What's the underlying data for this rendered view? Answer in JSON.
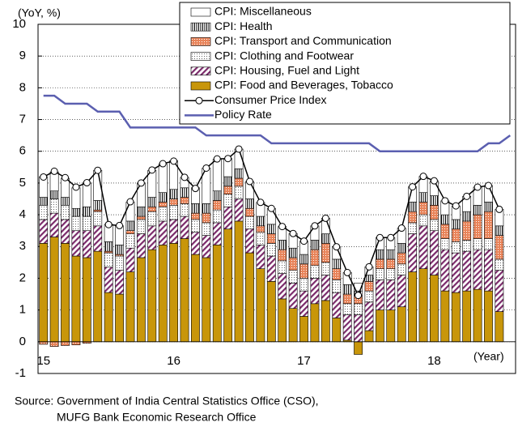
{
  "chart_data": {
    "type": "stacked-bar-line",
    "y_label": "(YoY, %)",
    "x_label": "(Year)",
    "source": [
      "Source: Government of India Central Statistics Office (CSO),",
      "MUFG Bank Economic Research Office"
    ],
    "categories": [
      "15",
      null,
      null,
      null,
      null,
      null,
      null,
      null,
      null,
      null,
      null,
      null,
      "16",
      null,
      null,
      null,
      null,
      null,
      null,
      null,
      null,
      null,
      null,
      null,
      "17",
      null,
      null,
      null,
      null,
      null,
      null,
      null,
      null,
      null,
      null,
      null,
      "18",
      null,
      null,
      null,
      null,
      null,
      null,
      null
    ],
    "ylim": [
      -1,
      10
    ],
    "yticks": [
      -1,
      0,
      1,
      2,
      3,
      4,
      5,
      6,
      7,
      8,
      9,
      10
    ],
    "grid": true,
    "legend": "top-right",
    "series": [
      {
        "name": "CPI: Food and Beverages, Tobacco",
        "kind": "bar",
        "pattern": "solid",
        "color": "#c8960a",
        "values": [
          3.1,
          3.3,
          3.1,
          2.7,
          2.65,
          2.85,
          1.55,
          1.5,
          2.2,
          2.65,
          2.9,
          3.05,
          3.1,
          3.25,
          2.75,
          2.65,
          3.05,
          3.55,
          3.8,
          2.8,
          2.3,
          1.9,
          1.35,
          1.05,
          0.8,
          1.2,
          1.3,
          0.75,
          0.05,
          -0.4,
          0.35,
          1.0,
          1.0,
          1.1,
          2.2,
          2.3,
          2.1,
          1.6,
          1.55,
          1.6,
          1.65,
          1.6,
          0.95,
          null
        ]
      },
      {
        "name": "CPI: Housing, Fuel and Light",
        "kind": "bar",
        "pattern": "diagonal",
        "color": "#7a2a6a",
        "values": [
          0.75,
          0.75,
          0.75,
          0.8,
          0.85,
          0.8,
          0.8,
          0.75,
          0.75,
          0.75,
          0.75,
          0.75,
          0.75,
          0.7,
          0.7,
          0.7,
          0.7,
          0.7,
          0.7,
          0.75,
          0.75,
          0.8,
          0.8,
          0.8,
          0.8,
          0.8,
          0.8,
          0.8,
          0.8,
          0.85,
          0.9,
          0.95,
          0.95,
          1.0,
          1.2,
          1.35,
          1.4,
          1.3,
          1.25,
          1.25,
          1.25,
          1.3,
          1.3,
          null
        ]
      },
      {
        "name": "CPI: Clothing and Footwear",
        "kind": "bar",
        "pattern": "dots",
        "color": "#666666",
        "values": [
          0.45,
          0.45,
          0.45,
          0.45,
          0.45,
          0.45,
          0.45,
          0.45,
          0.45,
          0.45,
          0.45,
          0.45,
          0.45,
          0.4,
          0.4,
          0.4,
          0.4,
          0.4,
          0.4,
          0.4,
          0.4,
          0.4,
          0.4,
          0.4,
          0.4,
          0.4,
          0.4,
          0.4,
          0.35,
          0.35,
          0.35,
          0.35,
          0.35,
          0.35,
          0.35,
          0.35,
          0.35,
          0.35,
          0.35,
          0.35,
          0.35,
          0.35,
          0.35,
          null
        ]
      },
      {
        "name": "CPI: Transport and Communication",
        "kind": "bar",
        "pattern": "checks",
        "color": "#e8845a",
        "values": [
          -0.08,
          -0.15,
          -0.12,
          -0.1,
          -0.05,
          0.05,
          0.05,
          0.05,
          0.1,
          0.1,
          0.15,
          0.15,
          0.2,
          0.2,
          0.2,
          0.3,
          0.3,
          0.25,
          0.25,
          0.25,
          0.2,
          0.3,
          0.35,
          0.4,
          0.45,
          0.5,
          0.6,
          0.35,
          0.3,
          0.25,
          0.3,
          0.3,
          0.3,
          0.35,
          0.35,
          0.4,
          0.45,
          0.45,
          0.4,
          0.6,
          0.75,
          0.85,
          0.75,
          null
        ]
      },
      {
        "name": "CPI: Health",
        "kind": "bar",
        "pattern": "vlines",
        "color": "#000000",
        "values": [
          0.25,
          0.25,
          0.25,
          0.25,
          0.3,
          0.3,
          0.3,
          0.3,
          0.3,
          0.3,
          0.3,
          0.3,
          0.3,
          0.3,
          0.3,
          0.3,
          0.3,
          0.3,
          0.3,
          0.3,
          0.3,
          0.3,
          0.3,
          0.3,
          0.3,
          0.3,
          0.3,
          0.3,
          0.3,
          0.15,
          0.2,
          0.3,
          0.3,
          0.3,
          0.3,
          0.3,
          0.3,
          0.3,
          0.3,
          0.3,
          0.3,
          0.3,
          0.3,
          null
        ]
      },
      {
        "name": "CPI: Miscellaneous",
        "kind": "bar",
        "pattern": "none",
        "color": "#ffffff",
        "values": [
          0.65,
          0.6,
          0.6,
          0.65,
          0.75,
          0.95,
          0.55,
          0.6,
          0.6,
          0.75,
          0.85,
          0.9,
          0.9,
          0.33,
          0.5,
          1.12,
          1.0,
          0.57,
          0.62,
          0.55,
          0.44,
          0.5,
          0.43,
          0.46,
          0.42,
          0.45,
          0.49,
          0.39,
          0.38,
          0.25,
          0.26,
          0.38,
          0.38,
          0.48,
          0.48,
          0.51,
          0.47,
          0.44,
          0.43,
          0.48,
          0.57,
          0.52,
          0.52,
          null
        ]
      },
      {
        "name": "Consumer Price Index",
        "kind": "line",
        "marker": true,
        "color": "#000000",
        "values": [
          5.19,
          5.37,
          5.17,
          4.87,
          5.01,
          5.4,
          3.69,
          3.66,
          4.41,
          5.0,
          5.41,
          5.61,
          5.69,
          5.18,
          4.83,
          5.47,
          5.76,
          5.77,
          6.07,
          5.05,
          4.39,
          4.2,
          3.63,
          3.41,
          3.17,
          3.65,
          3.89,
          2.99,
          2.18,
          1.46,
          2.36,
          3.28,
          3.28,
          3.58,
          4.88,
          5.21,
          5.07,
          4.44,
          4.28,
          4.58,
          4.87,
          4.92,
          4.17,
          null
        ]
      },
      {
        "name": "Policy Rate",
        "kind": "line",
        "marker": false,
        "color": "#5b5fb0",
        "values": [
          7.75,
          7.75,
          7.5,
          7.5,
          7.5,
          7.25,
          7.25,
          7.25,
          6.75,
          6.75,
          6.75,
          6.75,
          6.75,
          6.75,
          6.75,
          6.5,
          6.5,
          6.5,
          6.5,
          6.5,
          6.5,
          6.25,
          6.25,
          6.25,
          6.25,
          6.25,
          6.25,
          6.25,
          6.25,
          6.25,
          6.25,
          6.0,
          6.0,
          6.0,
          6.0,
          6.0,
          6.0,
          6.0,
          6.0,
          6.0,
          6.0,
          6.25,
          6.25,
          6.5
        ]
      }
    ]
  }
}
